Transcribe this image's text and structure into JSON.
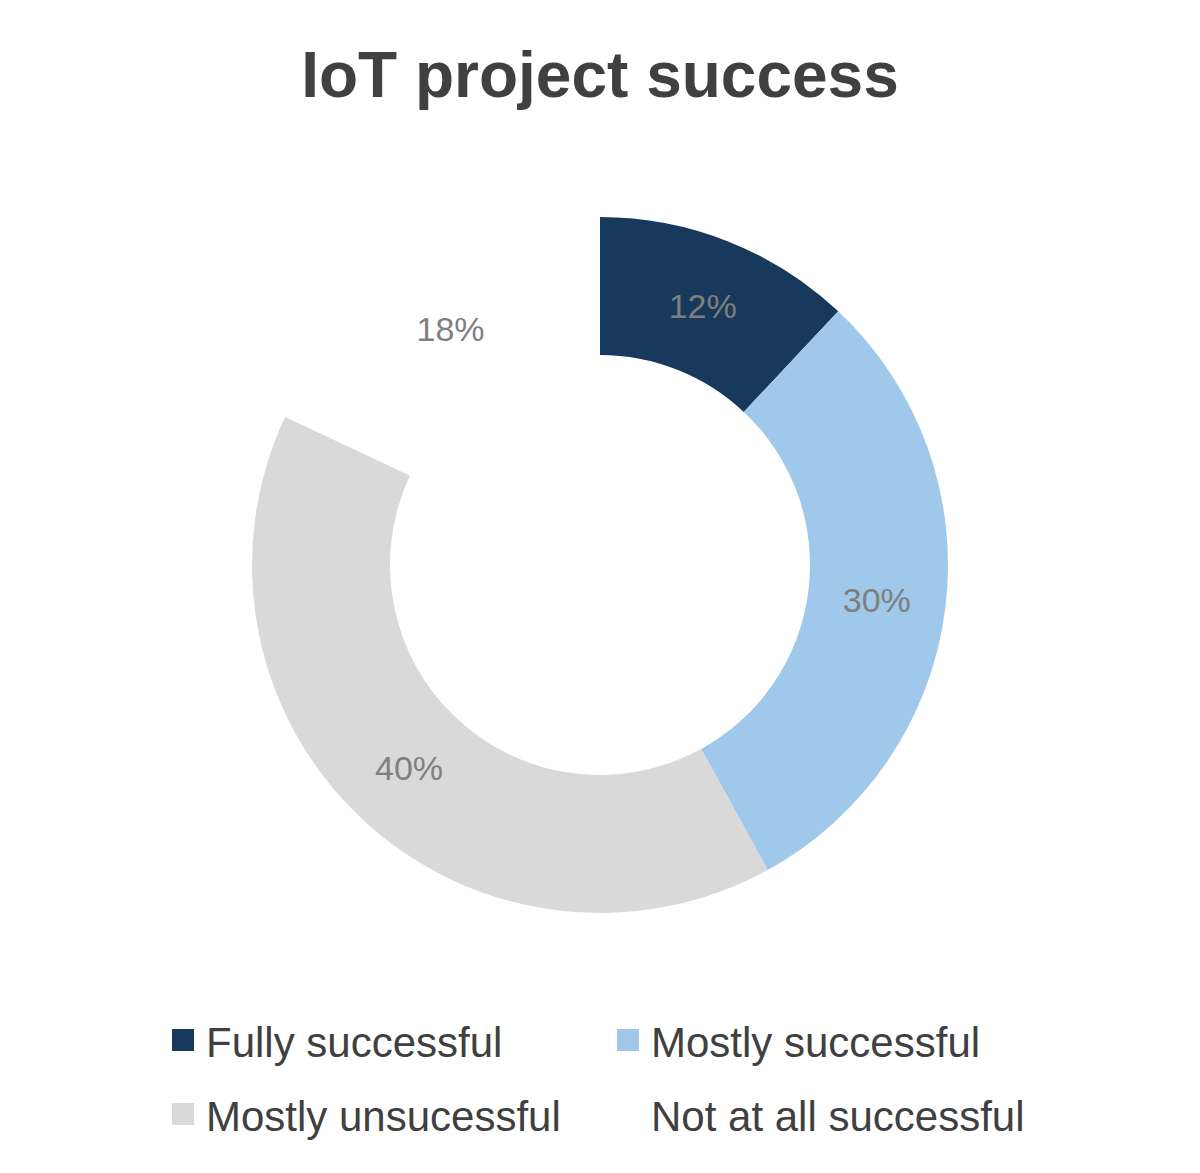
{
  "chart_data": {
    "type": "pie",
    "title": "IoT project success",
    "categories": [
      "Fully successful",
      "Mostly successful",
      "Mostly unsucessful",
      "Not at all successful"
    ],
    "values": [
      12,
      30,
      40,
      18
    ],
    "value_labels": [
      "12%",
      "30%",
      "40%",
      "18%"
    ],
    "colors": [
      "#16395c",
      "#9fc8ea",
      "#d9d9d9",
      "#ffffff"
    ],
    "data_labels": true,
    "legend": "bottom"
  }
}
